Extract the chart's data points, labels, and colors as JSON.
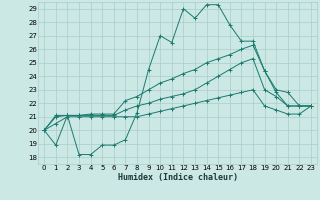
{
  "xlabel": "Humidex (Indice chaleur)",
  "background_color": "#cce8e4",
  "grid_color": "#aaccca",
  "line_color": "#1a7a6e",
  "xlim": [
    -0.5,
    23.5
  ],
  "ylim": [
    17.5,
    29.5
  ],
  "xticks": [
    0,
    1,
    2,
    3,
    4,
    5,
    6,
    7,
    8,
    9,
    10,
    11,
    12,
    13,
    14,
    15,
    16,
    17,
    18,
    19,
    20,
    21,
    22,
    23
  ],
  "yticks": [
    18,
    19,
    20,
    21,
    22,
    23,
    24,
    25,
    26,
    27,
    28,
    29
  ],
  "series": [
    [
      20.0,
      18.9,
      21.1,
      18.2,
      18.2,
      18.9,
      18.9,
      19.3,
      21.3,
      24.5,
      27.0,
      26.5,
      29.0,
      28.3,
      29.3,
      29.3,
      27.8,
      26.6,
      26.6,
      24.4,
      22.8,
      21.8,
      21.8,
      21.8
    ],
    [
      20.0,
      21.1,
      21.1,
      21.1,
      21.2,
      21.2,
      21.2,
      22.2,
      22.5,
      23.0,
      23.5,
      23.8,
      24.2,
      24.5,
      25.0,
      25.3,
      25.6,
      26.0,
      26.3,
      24.4,
      23.0,
      22.8,
      21.8,
      21.8
    ],
    [
      20.0,
      21.0,
      21.1,
      21.1,
      21.1,
      21.1,
      21.1,
      21.5,
      21.8,
      22.0,
      22.3,
      22.5,
      22.7,
      23.0,
      23.5,
      24.0,
      24.5,
      25.0,
      25.3,
      23.0,
      22.5,
      21.8,
      21.8,
      21.8
    ],
    [
      20.0,
      20.5,
      21.0,
      21.0,
      21.0,
      21.0,
      21.0,
      21.0,
      21.0,
      21.2,
      21.4,
      21.6,
      21.8,
      22.0,
      22.2,
      22.4,
      22.6,
      22.8,
      23.0,
      21.8,
      21.5,
      21.2,
      21.2,
      21.8
    ]
  ]
}
